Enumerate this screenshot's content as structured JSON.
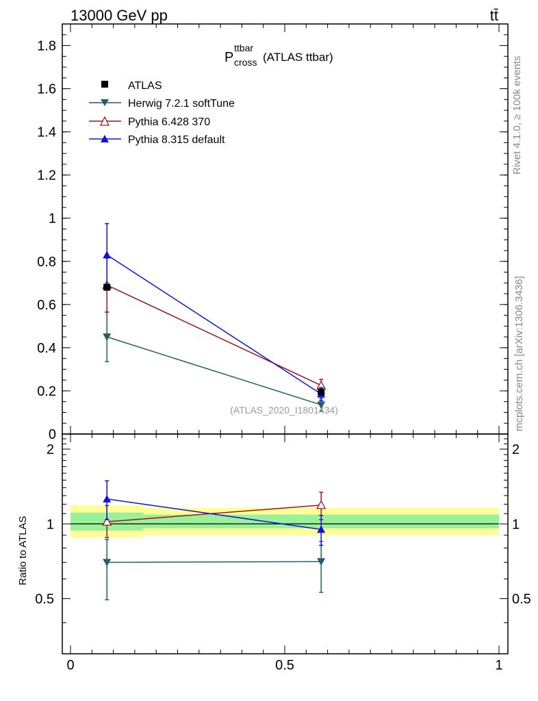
{
  "header": {
    "energy_label": "13000 GeV pp",
    "process_label": "tt̄",
    "side_label_top": "Rivet 4.1.0, ≥ 100k events",
    "side_label_bottom": "mcplots.cern.ch [arXiv:1306.3436]",
    "analysis_id": "(ATLAS_2020_I1801434)"
  },
  "chart_data": [
    {
      "type": "scatter",
      "panel": "main",
      "title_main": "P",
      "title_superscript": "ttbar",
      "title_subscript": "cross",
      "title_suffix": "(ATLAS ttbar)",
      "xlim": [
        0,
        1
      ],
      "ylim": [
        0,
        1.9
      ],
      "yticks": [
        0,
        0.2,
        0.4,
        0.6,
        0.8,
        1,
        1.2,
        1.4,
        1.6,
        1.8
      ],
      "ytick_labels": [
        "0",
        "0.2",
        "0.4",
        "0.6",
        "0.8",
        "1",
        "1.2",
        "1.4",
        "1.6",
        "1.8"
      ],
      "series": [
        {
          "name": "ATLAS",
          "color": "#000000",
          "marker": "square",
          "x": [
            0.085,
            0.585
          ],
          "y": [
            0.68,
            0.195
          ],
          "err": [
            0.0,
            0.0
          ]
        },
        {
          "name": "Herwig 7.2.1 softTune",
          "color": "#1f5f66",
          "marker": "triangle-down",
          "x": [
            0.085,
            0.585
          ],
          "y": [
            0.45,
            0.135
          ],
          "err": [
            0.115,
            0.03
          ]
        },
        {
          "name": "Pythia 6.428 370",
          "color": "#a0141e",
          "marker": "triangle-up-open",
          "x": [
            0.085,
            0.585
          ],
          "y": [
            0.69,
            0.225
          ],
          "err": [
            0.125,
            0.028
          ]
        },
        {
          "name": "Pythia 8.315 default",
          "color": "#1010e0",
          "marker": "triangle-up",
          "x": [
            0.085,
            0.585
          ],
          "y": [
            0.83,
            0.185
          ],
          "err": [
            0.145,
            0.03
          ]
        }
      ]
    },
    {
      "type": "scatter",
      "panel": "ratio",
      "ylabel": "Ratio to ATLAS",
      "xlim": [
        0,
        1
      ],
      "ylim": [
        0.3,
        2.3
      ],
      "yticks": [
        0.5,
        1,
        2
      ],
      "ytick_labels": [
        "0.5",
        "1",
        "2"
      ],
      "xticks": [
        0,
        0.5,
        1
      ],
      "xtick_labels": [
        "0",
        "0.5",
        "1"
      ],
      "bands": {
        "yellow": [
          {
            "x0": 0.0,
            "x1": 0.17,
            "lo": 0.88,
            "hi": 1.19
          },
          {
            "x0": 0.17,
            "x1": 1.0,
            "lo": 0.9,
            "hi": 1.16
          }
        ],
        "green": [
          {
            "x0": 0.0,
            "x1": 0.17,
            "lo": 0.94,
            "hi": 1.11
          },
          {
            "x0": 0.17,
            "x1": 1.0,
            "lo": 0.96,
            "hi": 1.09
          }
        ],
        "yellow_color": "#ffff99",
        "green_color": "#99f199"
      },
      "series": [
        {
          "name": "Herwig 7.2.1 softTune",
          "color": "#1f5f66",
          "marker": "triangle-down",
          "x": [
            0.085,
            0.585
          ],
          "y": [
            0.7,
            0.705
          ],
          "err_lo": [
            0.205,
            0.175
          ],
          "err_hi": [
            0.165,
            0.145
          ]
        },
        {
          "name": "Pythia 6.428 370",
          "color": "#a0141e",
          "marker": "triangle-up-open",
          "x": [
            0.085,
            0.585
          ],
          "y": [
            1.02,
            1.19
          ],
          "err_lo": [
            0.14,
            0.15
          ],
          "err_hi": [
            0.165,
            0.15
          ]
        },
        {
          "name": "Pythia 8.315 default",
          "color": "#1010e0",
          "marker": "triangle-up",
          "x": [
            0.085,
            0.585
          ],
          "y": [
            1.26,
            0.95
          ],
          "err_lo": [
            0.22,
            0.13
          ],
          "err_hi": [
            0.23,
            0.13
          ]
        }
      ]
    }
  ]
}
